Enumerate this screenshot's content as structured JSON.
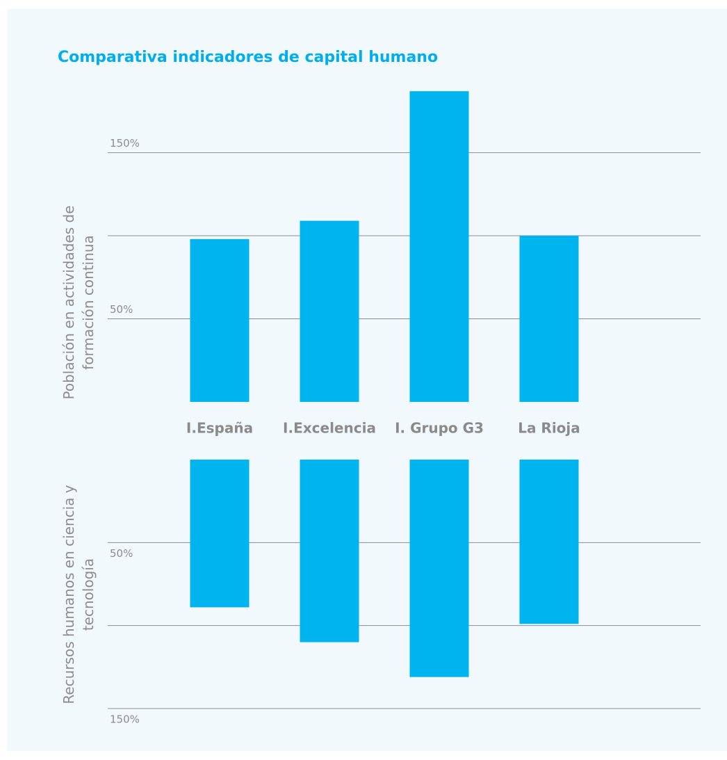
{
  "title": "Comparativa indicadores de capital humano",
  "chart_data": [
    {
      "type": "bar",
      "color": "#00b5ef",
      "y_label": [
        "Población en actividades de",
        "formación continua"
      ],
      "categories": [
        "I.España",
        "I.Excelencia",
        "I. Grupo G3",
        "La Rioja"
      ],
      "values": [
        98,
        109,
        187,
        100
      ],
      "ylim": [
        0,
        190
      ],
      "yticks": [
        {
          "value": 50,
          "label": "50%"
        },
        {
          "value": 100,
          "label": null
        },
        {
          "value": 150,
          "label": "150%"
        }
      ],
      "grid": true,
      "inverted": false
    },
    {
      "type": "bar",
      "color": "#00b5ef",
      "y_label": [
        "Recursos humanos en ciencia y",
        "tecnología"
      ],
      "values": [
        89,
        110,
        131,
        99
      ],
      "ylim": [
        0,
        150
      ],
      "yticks": [
        {
          "value": 50,
          "label": "50%"
        },
        {
          "value": 100,
          "label": null
        },
        {
          "value": 150,
          "label": "150%"
        }
      ],
      "grid": true,
      "inverted": true
    }
  ]
}
